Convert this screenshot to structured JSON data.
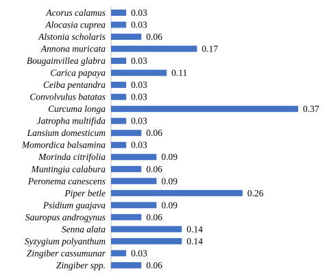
{
  "chart_data": {
    "type": "bar",
    "orientation": "horizontal",
    "title": "",
    "xlabel": "",
    "ylabel": "",
    "bar_color": "#4472C4",
    "grid": false,
    "legend": "none",
    "xlim": [
      0,
      0.37
    ],
    "categories": [
      "Acorus calamus",
      "Alocasia cuprea",
      "Alstonia scholaris",
      "Annona muricata",
      "Bougainvillea glabra",
      "Carica papaya",
      "Ceiba pentandra",
      "Convolvulus batatas",
      "Curcuma longa",
      "Jatropha multifida",
      "Lansium domesticum",
      "Momordica balsamina",
      "Morinda citrifolia",
      "Muntingia calabura",
      "Peronema canescens",
      "Piper betle",
      "Psidium guajava",
      "Sauropus androgynus",
      "Senna alata",
      "Syzygium polyanthum",
      "Zingiber cassumunar",
      "Zingiber spp."
    ],
    "values": [
      0.03,
      0.03,
      0.06,
      0.17,
      0.03,
      0.11,
      0.03,
      0.03,
      0.37,
      0.03,
      0.06,
      0.03,
      0.09,
      0.06,
      0.09,
      0.26,
      0.09,
      0.06,
      0.14,
      0.14,
      0.03,
      0.06
    ],
    "value_labels": [
      "0.03",
      "0.03",
      "0.06",
      "0.17",
      "0.03",
      "0.11",
      "0.03",
      "0.03",
      "0.37",
      "0.03",
      "0.06",
      "0.03",
      "0.09",
      "0.06",
      "0.09",
      "0.26",
      "0.09",
      "0.06",
      "0.14",
      "0.14",
      "0.03",
      "0.06"
    ]
  }
}
